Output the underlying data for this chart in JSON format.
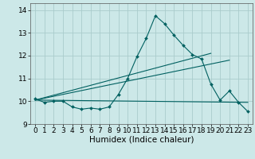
{
  "xlabel": "Humidex (Indice chaleur)",
  "background_color": "#cce8e8",
  "grid_color": "#aacccc",
  "line_color": "#006060",
  "xlim": [
    -0.5,
    23.5
  ],
  "ylim": [
    9.0,
    14.3
  ],
  "yticks": [
    9,
    10,
    11,
    12,
    13,
    14
  ],
  "xticks": [
    0,
    1,
    2,
    3,
    4,
    5,
    6,
    7,
    8,
    9,
    10,
    11,
    12,
    13,
    14,
    15,
    16,
    17,
    18,
    19,
    20,
    21,
    22,
    23
  ],
  "main_x": [
    0,
    1,
    2,
    3,
    4,
    5,
    6,
    7,
    8,
    9,
    10,
    11,
    12,
    13,
    14,
    15,
    16,
    17,
    18,
    19,
    20,
    21,
    22,
    23
  ],
  "main_y": [
    10.1,
    9.95,
    10.0,
    10.0,
    9.75,
    9.65,
    9.7,
    9.65,
    9.75,
    10.3,
    11.0,
    11.95,
    12.75,
    13.75,
    13.4,
    12.9,
    12.45,
    12.05,
    11.85,
    10.75,
    10.05,
    10.45,
    9.95,
    9.55
  ],
  "line1_x": [
    0,
    23
  ],
  "line1_y": [
    10.05,
    9.95
  ],
  "line2_x": [
    0,
    21
  ],
  "line2_y": [
    10.05,
    11.8
  ],
  "line3_x": [
    0,
    19
  ],
  "line3_y": [
    10.05,
    12.1
  ],
  "font_size_x": 6.5,
  "font_size_y": 6.5,
  "font_size_label": 7.5
}
